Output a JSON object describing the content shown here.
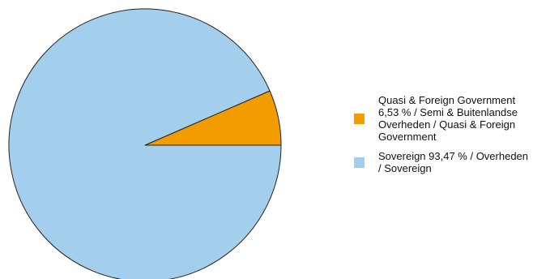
{
  "chart_data": {
    "type": "pie",
    "title": "",
    "slices": [
      {
        "label": "Quasi & Foreign Government 6,53 % / Semi & Buitenlandse Overheden / Quasi & Foreign Government",
        "value": 6.53,
        "color": "#f39c00"
      },
      {
        "label": "Sovereign 93,47 % / Overheden / Sovereign",
        "value": 93.47,
        "color": "#a3cfec"
      }
    ],
    "start_angle_deg": 0,
    "direction": "counterclockwise",
    "edge_color": "#222222",
    "legend_position": "right"
  }
}
